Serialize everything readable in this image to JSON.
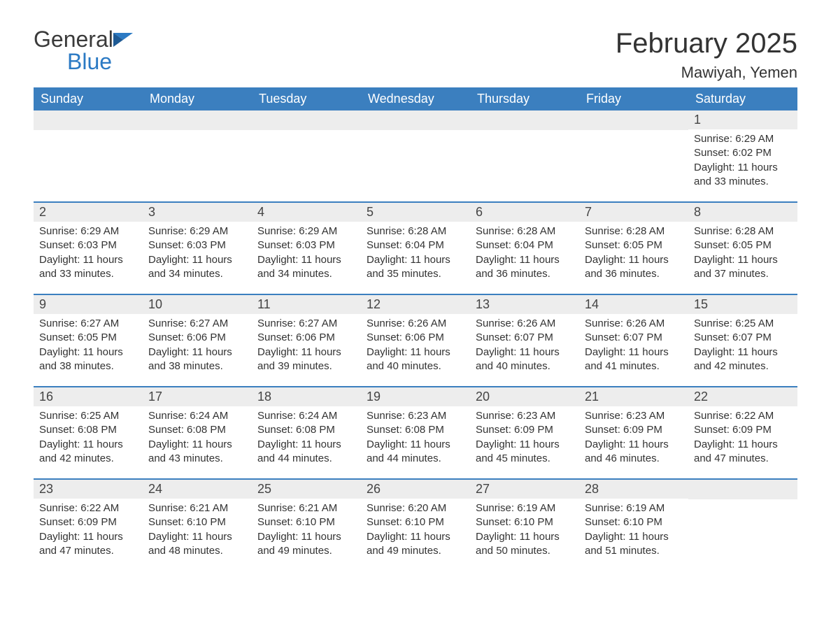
{
  "branding": {
    "logo_text_1": "General",
    "logo_text_2": "Blue",
    "logo_color_1": "#3a3a3a",
    "logo_color_2": "#2b7ac4"
  },
  "header": {
    "month_title": "February 2025",
    "location": "Mawiyah, Yemen"
  },
  "styling": {
    "header_row_bg": "#3b7fbf",
    "header_row_text": "#ffffff",
    "day_number_bg": "#ededed",
    "row_divider": "#3b7fbf",
    "body_text": "#333333",
    "page_bg": "#ffffff",
    "month_title_fontsize": 40,
    "location_fontsize": 22,
    "weekday_fontsize": 18,
    "detail_fontsize": 15
  },
  "weekdays": [
    "Sunday",
    "Monday",
    "Tuesday",
    "Wednesday",
    "Thursday",
    "Friday",
    "Saturday"
  ],
  "weeks": [
    [
      null,
      null,
      null,
      null,
      null,
      null,
      {
        "d": "1",
        "sr": "Sunrise: 6:29 AM",
        "ss": "Sunset: 6:02 PM",
        "dl1": "Daylight: 11 hours",
        "dl2": "and 33 minutes."
      }
    ],
    [
      {
        "d": "2",
        "sr": "Sunrise: 6:29 AM",
        "ss": "Sunset: 6:03 PM",
        "dl1": "Daylight: 11 hours",
        "dl2": "and 33 minutes."
      },
      {
        "d": "3",
        "sr": "Sunrise: 6:29 AM",
        "ss": "Sunset: 6:03 PM",
        "dl1": "Daylight: 11 hours",
        "dl2": "and 34 minutes."
      },
      {
        "d": "4",
        "sr": "Sunrise: 6:29 AM",
        "ss": "Sunset: 6:03 PM",
        "dl1": "Daylight: 11 hours",
        "dl2": "and 34 minutes."
      },
      {
        "d": "5",
        "sr": "Sunrise: 6:28 AM",
        "ss": "Sunset: 6:04 PM",
        "dl1": "Daylight: 11 hours",
        "dl2": "and 35 minutes."
      },
      {
        "d": "6",
        "sr": "Sunrise: 6:28 AM",
        "ss": "Sunset: 6:04 PM",
        "dl1": "Daylight: 11 hours",
        "dl2": "and 36 minutes."
      },
      {
        "d": "7",
        "sr": "Sunrise: 6:28 AM",
        "ss": "Sunset: 6:05 PM",
        "dl1": "Daylight: 11 hours",
        "dl2": "and 36 minutes."
      },
      {
        "d": "8",
        "sr": "Sunrise: 6:28 AM",
        "ss": "Sunset: 6:05 PM",
        "dl1": "Daylight: 11 hours",
        "dl2": "and 37 minutes."
      }
    ],
    [
      {
        "d": "9",
        "sr": "Sunrise: 6:27 AM",
        "ss": "Sunset: 6:05 PM",
        "dl1": "Daylight: 11 hours",
        "dl2": "and 38 minutes."
      },
      {
        "d": "10",
        "sr": "Sunrise: 6:27 AM",
        "ss": "Sunset: 6:06 PM",
        "dl1": "Daylight: 11 hours",
        "dl2": "and 38 minutes."
      },
      {
        "d": "11",
        "sr": "Sunrise: 6:27 AM",
        "ss": "Sunset: 6:06 PM",
        "dl1": "Daylight: 11 hours",
        "dl2": "and 39 minutes."
      },
      {
        "d": "12",
        "sr": "Sunrise: 6:26 AM",
        "ss": "Sunset: 6:06 PM",
        "dl1": "Daylight: 11 hours",
        "dl2": "and 40 minutes."
      },
      {
        "d": "13",
        "sr": "Sunrise: 6:26 AM",
        "ss": "Sunset: 6:07 PM",
        "dl1": "Daylight: 11 hours",
        "dl2": "and 40 minutes."
      },
      {
        "d": "14",
        "sr": "Sunrise: 6:26 AM",
        "ss": "Sunset: 6:07 PM",
        "dl1": "Daylight: 11 hours",
        "dl2": "and 41 minutes."
      },
      {
        "d": "15",
        "sr": "Sunrise: 6:25 AM",
        "ss": "Sunset: 6:07 PM",
        "dl1": "Daylight: 11 hours",
        "dl2": "and 42 minutes."
      }
    ],
    [
      {
        "d": "16",
        "sr": "Sunrise: 6:25 AM",
        "ss": "Sunset: 6:08 PM",
        "dl1": "Daylight: 11 hours",
        "dl2": "and 42 minutes."
      },
      {
        "d": "17",
        "sr": "Sunrise: 6:24 AM",
        "ss": "Sunset: 6:08 PM",
        "dl1": "Daylight: 11 hours",
        "dl2": "and 43 minutes."
      },
      {
        "d": "18",
        "sr": "Sunrise: 6:24 AM",
        "ss": "Sunset: 6:08 PM",
        "dl1": "Daylight: 11 hours",
        "dl2": "and 44 minutes."
      },
      {
        "d": "19",
        "sr": "Sunrise: 6:23 AM",
        "ss": "Sunset: 6:08 PM",
        "dl1": "Daylight: 11 hours",
        "dl2": "and 44 minutes."
      },
      {
        "d": "20",
        "sr": "Sunrise: 6:23 AM",
        "ss": "Sunset: 6:09 PM",
        "dl1": "Daylight: 11 hours",
        "dl2": "and 45 minutes."
      },
      {
        "d": "21",
        "sr": "Sunrise: 6:23 AM",
        "ss": "Sunset: 6:09 PM",
        "dl1": "Daylight: 11 hours",
        "dl2": "and 46 minutes."
      },
      {
        "d": "22",
        "sr": "Sunrise: 6:22 AM",
        "ss": "Sunset: 6:09 PM",
        "dl1": "Daylight: 11 hours",
        "dl2": "and 47 minutes."
      }
    ],
    [
      {
        "d": "23",
        "sr": "Sunrise: 6:22 AM",
        "ss": "Sunset: 6:09 PM",
        "dl1": "Daylight: 11 hours",
        "dl2": "and 47 minutes."
      },
      {
        "d": "24",
        "sr": "Sunrise: 6:21 AM",
        "ss": "Sunset: 6:10 PM",
        "dl1": "Daylight: 11 hours",
        "dl2": "and 48 minutes."
      },
      {
        "d": "25",
        "sr": "Sunrise: 6:21 AM",
        "ss": "Sunset: 6:10 PM",
        "dl1": "Daylight: 11 hours",
        "dl2": "and 49 minutes."
      },
      {
        "d": "26",
        "sr": "Sunrise: 6:20 AM",
        "ss": "Sunset: 6:10 PM",
        "dl1": "Daylight: 11 hours",
        "dl2": "and 49 minutes."
      },
      {
        "d": "27",
        "sr": "Sunrise: 6:19 AM",
        "ss": "Sunset: 6:10 PM",
        "dl1": "Daylight: 11 hours",
        "dl2": "and 50 minutes."
      },
      {
        "d": "28",
        "sr": "Sunrise: 6:19 AM",
        "ss": "Sunset: 6:10 PM",
        "dl1": "Daylight: 11 hours",
        "dl2": "and 51 minutes."
      },
      null
    ]
  ]
}
